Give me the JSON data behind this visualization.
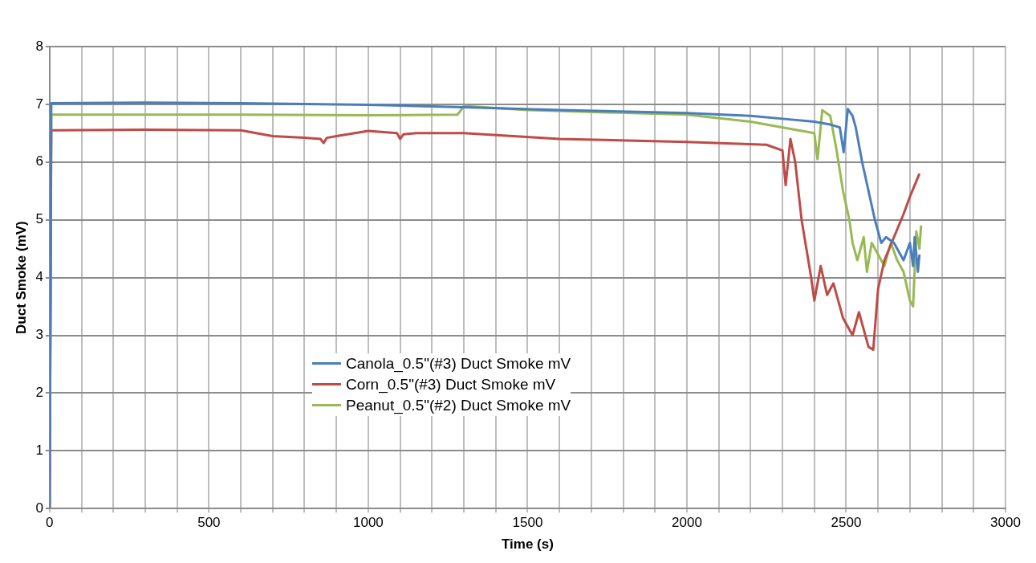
{
  "chart_data": {
    "type": "line",
    "xlabel": "Time (s)",
    "ylabel": "Duct Smoke (mV)",
    "xlim": [
      0,
      3000
    ],
    "ylim": [
      0,
      8
    ],
    "xticks": [
      0,
      {
        "value": 100,
        "label": null
      },
      {
        "value": 200,
        "label": null
      },
      {
        "value": 300,
        "label": null
      },
      {
        "value": 400,
        "label": null
      },
      500,
      {
        "value": 600,
        "label": null
      },
      {
        "value": 700,
        "label": null
      },
      {
        "value": 800,
        "label": null
      },
      {
        "value": 900,
        "label": null
      },
      1000,
      {
        "value": 1100,
        "label": null
      },
      {
        "value": 1200,
        "label": null
      },
      {
        "value": 1300,
        "label": null
      },
      {
        "value": 1400,
        "label": null
      },
      1500,
      {
        "value": 1600,
        "label": null
      },
      {
        "value": 1700,
        "label": null
      },
      {
        "value": 1800,
        "label": null
      },
      {
        "value": 1900,
        "label": null
      },
      2000,
      {
        "value": 2100,
        "label": null
      },
      {
        "value": 2200,
        "label": null
      },
      {
        "value": 2300,
        "label": null
      },
      {
        "value": 2400,
        "label": null
      },
      2500,
      {
        "value": 2600,
        "label": null
      },
      {
        "value": 2700,
        "label": null
      },
      {
        "value": 2800,
        "label": null
      },
      {
        "value": 2900,
        "label": null
      },
      3000
    ],
    "yticks": [
      0,
      1,
      2,
      3,
      4,
      5,
      6,
      7,
      8
    ],
    "grid": true,
    "legend": "center",
    "marker": "none",
    "line_style": "solid",
    "series": [
      {
        "name": "Canola_0.5\"(#3) Duct Smoke mV",
        "color": "#4a7ebb",
        "x": [
          0,
          5,
          300,
          600,
          1000,
          1300,
          1600,
          2000,
          2200,
          2300,
          2400,
          2450,
          2480,
          2492,
          2505,
          2520,
          2530,
          2550,
          2570,
          2590,
          2610,
          2625,
          2650,
          2680,
          2700,
          2710,
          2715,
          2725,
          2730
        ],
        "values": [
          0,
          7.02,
          7.03,
          7.02,
          6.99,
          6.95,
          6.9,
          6.85,
          6.8,
          6.75,
          6.7,
          6.65,
          6.6,
          6.17,
          6.92,
          6.8,
          6.6,
          6.0,
          5.5,
          5.0,
          4.6,
          4.7,
          4.6,
          4.3,
          4.6,
          4.2,
          4.7,
          4.1,
          4.4
        ]
      },
      {
        "name": "Corn_0.5\"(#3) Duct Smoke mV",
        "color": "#be4b48",
        "x": [
          0,
          5,
          300,
          600,
          700,
          800,
          850,
          860,
          870,
          900,
          1000,
          1090,
          1100,
          1110,
          1150,
          1300,
          1600,
          2000,
          2250,
          2300,
          2310,
          2325,
          2340,
          2360,
          2390,
          2400,
          2420,
          2440,
          2460,
          2490,
          2520,
          2540,
          2570,
          2585,
          2600,
          2620,
          2650,
          2680,
          2700,
          2730
        ],
        "values": [
          0,
          6.55,
          6.56,
          6.55,
          6.45,
          6.42,
          6.4,
          6.33,
          6.42,
          6.45,
          6.54,
          6.5,
          6.4,
          6.48,
          6.5,
          6.5,
          6.4,
          6.35,
          6.3,
          6.2,
          5.6,
          6.4,
          6.0,
          5.0,
          4.0,
          3.6,
          4.2,
          3.7,
          3.9,
          3.3,
          3.0,
          3.4,
          2.8,
          2.75,
          3.8,
          4.3,
          4.7,
          5.1,
          5.4,
          5.8
        ]
      },
      {
        "name": "Peanut_0.5\"(#2) Duct Smoke mV",
        "color": "#98b954",
        "x": [
          0,
          5,
          300,
          600,
          1000,
          1280,
          1300,
          1500,
          2000,
          2200,
          2350,
          2400,
          2410,
          2425,
          2450,
          2470,
          2490,
          2510,
          2520,
          2535,
          2555,
          2565,
          2580,
          2600,
          2620,
          2640,
          2660,
          2680,
          2700,
          2710,
          2720,
          2730,
          2735
        ],
        "values": [
          0,
          6.82,
          6.82,
          6.82,
          6.81,
          6.82,
          6.97,
          6.9,
          6.82,
          6.7,
          6.55,
          6.5,
          6.05,
          6.9,
          6.8,
          6.2,
          5.5,
          5.0,
          4.6,
          4.3,
          4.7,
          4.1,
          4.6,
          4.4,
          4.2,
          4.6,
          4.3,
          4.1,
          3.6,
          3.5,
          4.8,
          4.5,
          4.9
        ]
      }
    ]
  }
}
